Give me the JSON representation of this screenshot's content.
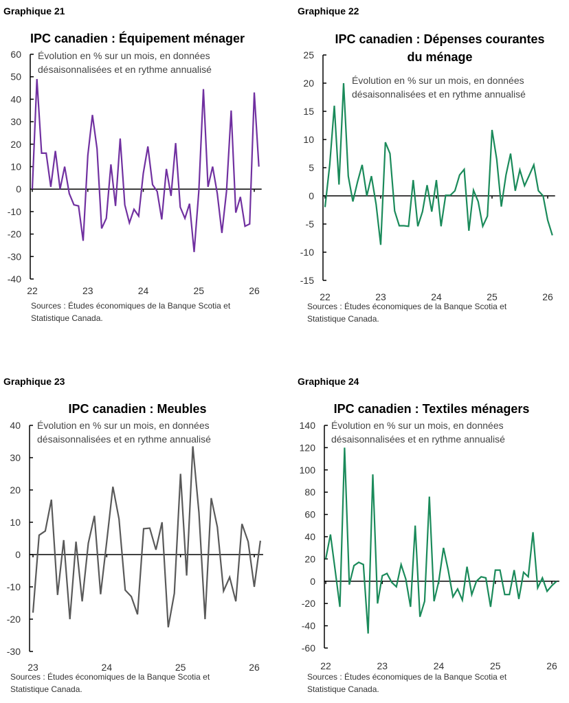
{
  "chart_data": [
    {
      "type": "line",
      "heading": "Graphique 21",
      "title": [
        "IPC canadien : Équipement ménager"
      ],
      "subtitle": [
        "Évolution en % sur un mois, en données",
        "désaisonnalisées et en rythme annualisé"
      ],
      "sources": [
        "Sources : Études économiques de la Banque Scotia et",
        "Statistique Canada."
      ],
      "color": "#7030A0",
      "ylim": [
        -40,
        60
      ],
      "yticks": [
        -40,
        -30,
        -20,
        -10,
        0,
        10,
        20,
        30,
        40,
        50,
        60
      ],
      "xtick_labels": [
        "22",
        "23",
        "24",
        "25",
        "26"
      ],
      "x": [
        "2022-01",
        "2022-02",
        "2022-03",
        "2022-04",
        "2022-05",
        "2022-06",
        "2022-07",
        "2022-08",
        "2022-09",
        "2022-10",
        "2022-11",
        "2022-12",
        "2023-01",
        "2023-02",
        "2023-03",
        "2023-04",
        "2023-05",
        "2023-06",
        "2023-07",
        "2023-08",
        "2023-09",
        "2023-10",
        "2023-11",
        "2023-12",
        "2024-01",
        "2024-02",
        "2024-03",
        "2024-04",
        "2024-05",
        "2024-06",
        "2024-07",
        "2024-08",
        "2024-09",
        "2024-10",
        "2024-11",
        "2024-12",
        "2025-01",
        "2025-02",
        "2025-03",
        "2025-04",
        "2025-05",
        "2025-06",
        "2025-07",
        "2025-08",
        "2025-09",
        "2025-10",
        "2025-11",
        "2025-12",
        "2026-01",
        "2026-02"
      ],
      "values": [
        0,
        49,
        16,
        16,
        1,
        17,
        0,
        10,
        -2,
        -7,
        -7.5,
        -23,
        15,
        33,
        18,
        -17.5,
        -13,
        11,
        -7.5,
        22.5,
        -7,
        -15,
        -9,
        -12,
        7,
        19,
        2,
        -1,
        -13.5,
        9,
        -3,
        20.5,
        -8,
        -13,
        -6.5,
        -28,
        -1,
        44.5,
        1,
        10,
        -2,
        -19.5,
        -1,
        35,
        -10.5,
        -3.5,
        -16.5,
        -15.5,
        43,
        10
      ]
    },
    {
      "type": "line",
      "heading": "Graphique 22",
      "title": [
        "IPC canadien : Dépenses courantes",
        "du ménage"
      ],
      "subtitle": [
        "Évolution en % sur un mois, en données",
        "désaisonnalisées et en rythme annualisé"
      ],
      "sources": [
        "Sources : Études économiques de la Banque Scotia et",
        "Statistique Canada."
      ],
      "color": "#1A8A5A",
      "ylim": [
        -15,
        25
      ],
      "yticks": [
        -15,
        -10,
        -5,
        0,
        5,
        10,
        15,
        20,
        25
      ],
      "xtick_labels": [
        "22",
        "23",
        "24",
        "25",
        "26"
      ],
      "x": [
        "2022-01",
        "2022-02",
        "2022-03",
        "2022-04",
        "2022-05",
        "2022-06",
        "2022-07",
        "2022-08",
        "2022-09",
        "2022-10",
        "2022-11",
        "2022-12",
        "2023-01",
        "2023-02",
        "2023-03",
        "2023-04",
        "2023-05",
        "2023-06",
        "2023-07",
        "2023-08",
        "2023-09",
        "2023-10",
        "2023-11",
        "2023-12",
        "2024-01",
        "2024-02",
        "2024-03",
        "2024-04",
        "2024-05",
        "2024-06",
        "2024-07",
        "2024-08",
        "2024-09",
        "2024-10",
        "2024-11",
        "2024-12",
        "2025-01",
        "2025-02",
        "2025-03",
        "2025-04",
        "2025-05",
        "2025-06",
        "2025-07",
        "2025-08",
        "2025-09",
        "2025-10",
        "2025-11",
        "2025-12",
        "2026-01",
        "2026-02"
      ],
      "values": [
        -2,
        5.5,
        16,
        2,
        20,
        3.5,
        -1,
        2.5,
        5.5,
        0,
        3.5,
        -1.5,
        -8.7,
        9.5,
        7.5,
        -2.7,
        -5.3,
        -5.3,
        -5.4,
        2.8,
        -5.4,
        -2.8,
        1.9,
        -2.8,
        2.8,
        -5.4,
        0.1,
        0.1,
        0.9,
        3.7,
        4.7,
        -6.2,
        1,
        -1,
        -5.4,
        -3.6,
        11.7,
        6.5,
        -1.9,
        3.7,
        7.5,
        0.9,
        4.6,
        1.8,
        3.6,
        5.5,
        0.9,
        0,
        -4.3,
        -7
      ]
    },
    {
      "type": "line",
      "heading": "Graphique 23",
      "title": [
        "IPC canadien : Meubles"
      ],
      "subtitle": [
        "Évolution en % sur un mois, en données",
        "désaisonnalisées et en rythme annualisé"
      ],
      "sources": [
        "Sources : Études économiques de la Banque Scotia et",
        "Statistique Canada."
      ],
      "color": "#595959",
      "ylim": [
        -30,
        40
      ],
      "yticks": [
        -30,
        -20,
        -10,
        0,
        10,
        20,
        30,
        40
      ],
      "xtick_labels": [
        "23",
        "24",
        "25",
        "26"
      ],
      "x": [
        "2023-01",
        "2023-02",
        "2023-03",
        "2023-04",
        "2023-05",
        "2023-06",
        "2023-07",
        "2023-08",
        "2023-09",
        "2023-10",
        "2023-11",
        "2023-12",
        "2024-01",
        "2024-02",
        "2024-03",
        "2024-04",
        "2024-05",
        "2024-06",
        "2024-07",
        "2024-08",
        "2024-09",
        "2024-10",
        "2024-11",
        "2024-12",
        "2025-01",
        "2025-02",
        "2025-03",
        "2025-04",
        "2025-05",
        "2025-06",
        "2025-07",
        "2025-08",
        "2025-09",
        "2025-10",
        "2025-11",
        "2025-12",
        "2026-01",
        "2026-02"
      ],
      "values": [
        -18,
        6,
        7.3,
        17,
        -12.5,
        4.5,
        -20,
        4,
        -14.5,
        3.5,
        12,
        -12.3,
        4,
        21,
        11,
        -11,
        -13,
        -18.5,
        8,
        8.2,
        1.5,
        10,
        -22.5,
        -12,
        25,
        -6.5,
        33.5,
        13,
        -20,
        17.5,
        8.5,
        -11.3,
        -7,
        -14.5,
        9.5,
        4,
        -10,
        4.3
      ]
    },
    {
      "type": "line",
      "heading": "Graphique 24",
      "title": [
        "IPC canadien : Textiles ménagers"
      ],
      "subtitle": [
        "Évolution en % sur un mois, en données",
        "désaisonnalisées et en rythme annualisé"
      ],
      "sources": [
        "Sources : Études économiques de la Banque Scotia et",
        "Statistique Canada."
      ],
      "color": "#1A8A5A",
      "ylim": [
        -60,
        140
      ],
      "yticks": [
        -60,
        -40,
        -20,
        0,
        20,
        40,
        60,
        80,
        100,
        120,
        140
      ],
      "xtick_labels": [
        "22",
        "23",
        "24",
        "25",
        "26"
      ],
      "x": [
        "2022-01",
        "2022-02",
        "2022-03",
        "2022-04",
        "2022-05",
        "2022-06",
        "2022-07",
        "2022-08",
        "2022-09",
        "2022-10",
        "2022-11",
        "2022-12",
        "2023-01",
        "2023-02",
        "2023-03",
        "2023-04",
        "2023-05",
        "2023-06",
        "2023-07",
        "2023-08",
        "2023-09",
        "2023-10",
        "2023-11",
        "2023-12",
        "2024-01",
        "2024-02",
        "2024-03",
        "2024-04",
        "2024-05",
        "2024-06",
        "2024-07",
        "2024-08",
        "2024-09",
        "2024-10",
        "2024-11",
        "2024-12",
        "2025-01",
        "2025-02",
        "2025-03",
        "2025-04",
        "2025-05",
        "2025-06",
        "2025-07",
        "2025-08",
        "2025-09",
        "2025-10",
        "2025-11",
        "2025-12",
        "2026-01",
        "2026-02"
      ],
      "values": [
        20,
        42,
        10,
        -23,
        120,
        -3,
        14,
        17,
        15,
        -47,
        96,
        -20,
        5,
        7,
        -1,
        -5,
        15,
        2,
        -23,
        50,
        -32,
        -18,
        76,
        -18,
        0,
        30,
        10,
        -14,
        -7,
        -17,
        13,
        -12,
        0,
        4,
        3,
        -23,
        10,
        10,
        -12,
        -12,
        10,
        -16,
        8,
        4,
        44,
        -6,
        3,
        -9,
        -4,
        0
      ]
    }
  ]
}
